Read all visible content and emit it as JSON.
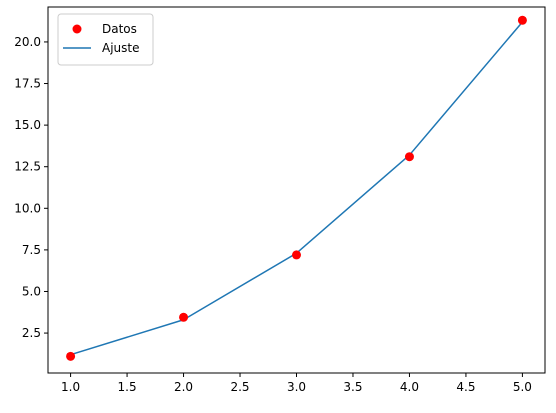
{
  "chart_data": {
    "type": "line",
    "title": "",
    "xlabel": "",
    "ylabel": "",
    "xlim": [
      0.8,
      5.2
    ],
    "ylim": [
      0.1,
      22.1
    ],
    "x_ticks": [
      1.0,
      1.5,
      2.0,
      2.5,
      3.0,
      3.5,
      4.0,
      4.5,
      5.0
    ],
    "x_tick_labels": [
      "1.0",
      "1.5",
      "2.0",
      "2.5",
      "3.0",
      "3.5",
      "4.0",
      "4.5",
      "5.0"
    ],
    "y_ticks": [
      2.5,
      5.0,
      7.5,
      10.0,
      12.5,
      15.0,
      17.5,
      20.0
    ],
    "y_tick_labels": [
      "2.5",
      "5.0",
      "7.5",
      "10.0",
      "12.5",
      "15.0",
      "17.5",
      "20.0"
    ],
    "grid": false,
    "legend": {
      "position": "top-left",
      "entries": [
        "Datos",
        "Ajuste"
      ]
    },
    "series": [
      {
        "name": "Datos",
        "style": "markers",
        "color": "#ff0000",
        "x": [
          1,
          2,
          3,
          4,
          5
        ],
        "y": [
          1.1,
          3.45,
          7.2,
          13.1,
          21.3
        ]
      },
      {
        "name": "Ajuste",
        "style": "line",
        "color": "#1f77b4",
        "x": [
          1,
          2,
          3,
          4,
          5
        ],
        "y": [
          1.2,
          3.3,
          7.3,
          13.2,
          21.2
        ]
      }
    ]
  }
}
